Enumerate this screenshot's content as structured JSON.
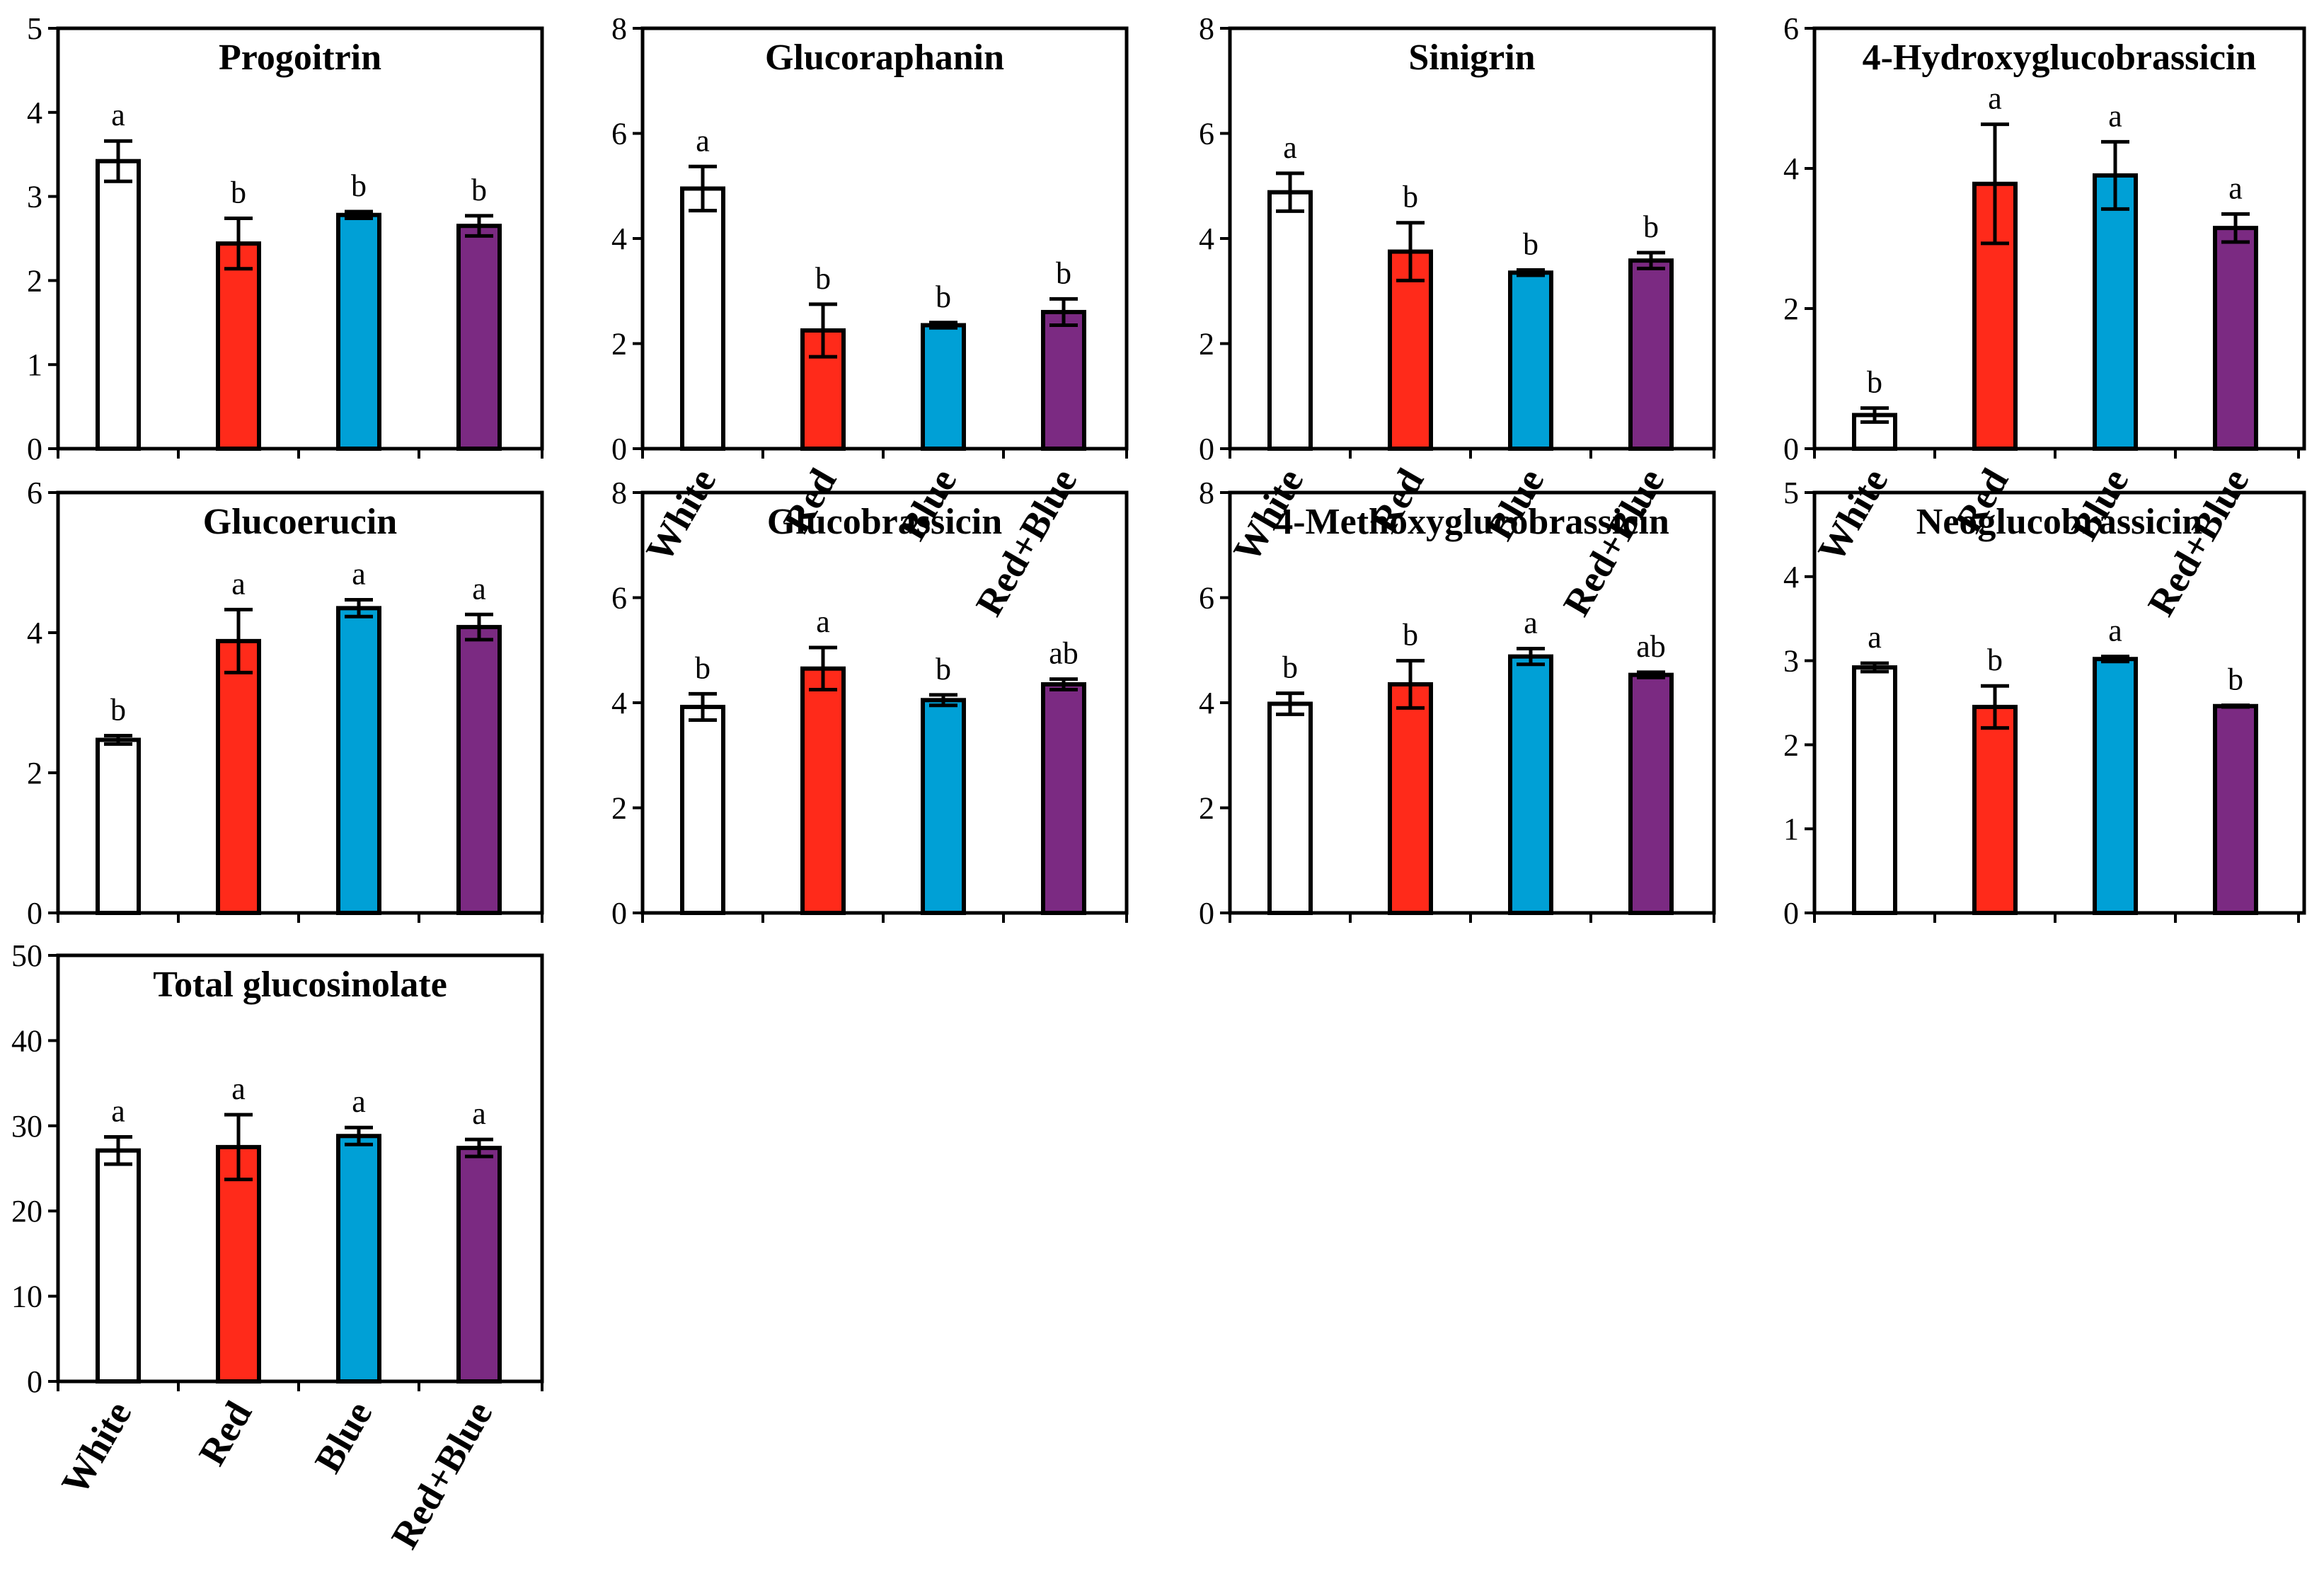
{
  "colors": {
    "White": "#ffffff",
    "Red": "#ff2a1a",
    "Blue": "#00a0d6",
    "Red+Blue": "#7b2a82",
    "stroke": "#000000"
  },
  "chart_data": [
    {
      "type": "bar",
      "title": "Progoitrin",
      "categories": [
        "White",
        "Red",
        "Blue",
        "Red+Blue"
      ],
      "values": [
        3.42,
        2.44,
        2.78,
        2.65
      ],
      "errors": [
        0.24,
        0.3,
        0.04,
        0.12
      ],
      "significance": [
        "a",
        "b",
        "b",
        "b"
      ],
      "ylim": [
        0,
        5
      ],
      "yticks": [
        0,
        1,
        2,
        3,
        4,
        5
      ],
      "show_xlabels": false
    },
    {
      "type": "bar",
      "title": "Glucoraphanin",
      "categories": [
        "White",
        "Red",
        "Blue",
        "Red+Blue"
      ],
      "values": [
        4.95,
        2.25,
        2.35,
        2.6
      ],
      "errors": [
        0.42,
        0.5,
        0.05,
        0.25
      ],
      "significance": [
        "a",
        "b",
        "b",
        "b"
      ],
      "ylim": [
        0,
        8
      ],
      "yticks": [
        0,
        2,
        4,
        6,
        8
      ],
      "show_xlabels": true
    },
    {
      "type": "bar",
      "title": "Sinigrin",
      "categories": [
        "White",
        "Red",
        "Blue",
        "Red+Blue"
      ],
      "values": [
        4.88,
        3.75,
        3.35,
        3.58
      ],
      "errors": [
        0.36,
        0.55,
        0.05,
        0.15
      ],
      "significance": [
        "a",
        "b",
        "b",
        "b"
      ],
      "ylim": [
        0,
        8
      ],
      "yticks": [
        0,
        2,
        4,
        6,
        8
      ],
      "show_xlabels": true
    },
    {
      "type": "bar",
      "title": "4-Hydroxyglucobrassicin",
      "categories": [
        "White",
        "Red",
        "Blue",
        "Red+Blue"
      ],
      "values": [
        0.48,
        3.78,
        3.9,
        3.15
      ],
      "errors": [
        0.1,
        0.85,
        0.48,
        0.2
      ],
      "significance": [
        "b",
        "a",
        "a",
        "a"
      ],
      "ylim": [
        0,
        6
      ],
      "yticks": [
        0,
        2,
        4,
        6
      ],
      "show_xlabels": true
    },
    {
      "type": "bar",
      "title": "Glucoerucin",
      "categories": [
        "White",
        "Red",
        "Blue",
        "Red+Blue"
      ],
      "values": [
        2.47,
        3.88,
        4.35,
        4.08
      ],
      "errors": [
        0.06,
        0.45,
        0.12,
        0.18
      ],
      "significance": [
        "b",
        "a",
        "a",
        "a"
      ],
      "ylim": [
        0,
        6
      ],
      "yticks": [
        0,
        2,
        4,
        6
      ],
      "show_xlabels": false
    },
    {
      "type": "bar",
      "title": "Glucobrassicin",
      "categories": [
        "White",
        "Red",
        "Blue",
        "Red+Blue"
      ],
      "values": [
        3.92,
        4.65,
        4.05,
        4.35
      ],
      "errors": [
        0.25,
        0.4,
        0.1,
        0.1
      ],
      "significance": [
        "b",
        "a",
        "b",
        "ab"
      ],
      "ylim": [
        0,
        8
      ],
      "yticks": [
        0,
        2,
        4,
        6,
        8
      ],
      "show_xlabels": false
    },
    {
      "type": "bar",
      "title": "4-Methoxyglucobrassicin",
      "categories": [
        "White",
        "Red",
        "Blue",
        "Red+Blue"
      ],
      "values": [
        3.98,
        4.35,
        4.88,
        4.53
      ],
      "errors": [
        0.2,
        0.45,
        0.15,
        0.05
      ],
      "significance": [
        "b",
        "b",
        "a",
        "ab"
      ],
      "ylim": [
        0,
        8
      ],
      "yticks": [
        0,
        2,
        4,
        6,
        8
      ],
      "show_xlabels": false
    },
    {
      "type": "bar",
      "title": "Neoglucobrassicin",
      "categories": [
        "White",
        "Red",
        "Blue",
        "Red+Blue"
      ],
      "values": [
        2.92,
        2.45,
        3.02,
        2.46
      ],
      "errors": [
        0.05,
        0.25,
        0.03,
        0.01
      ],
      "significance": [
        "a",
        "b",
        "a",
        "b"
      ],
      "ylim": [
        0,
        5
      ],
      "yticks": [
        0,
        1,
        2,
        3,
        4,
        5
      ],
      "show_xlabels": false
    },
    {
      "type": "bar",
      "title": "Total glucosinolate",
      "categories": [
        "White",
        "Red",
        "Blue",
        "Red+Blue"
      ],
      "values": [
        27.1,
        27.5,
        28.8,
        27.4
      ],
      "errors": [
        1.6,
        3.8,
        1.0,
        1.0
      ],
      "significance": [
        "a",
        "a",
        "a",
        "a"
      ],
      "ylim": [
        0,
        50
      ],
      "yticks": [
        0,
        10,
        20,
        30,
        40,
        50
      ],
      "show_xlabels": true
    }
  ]
}
